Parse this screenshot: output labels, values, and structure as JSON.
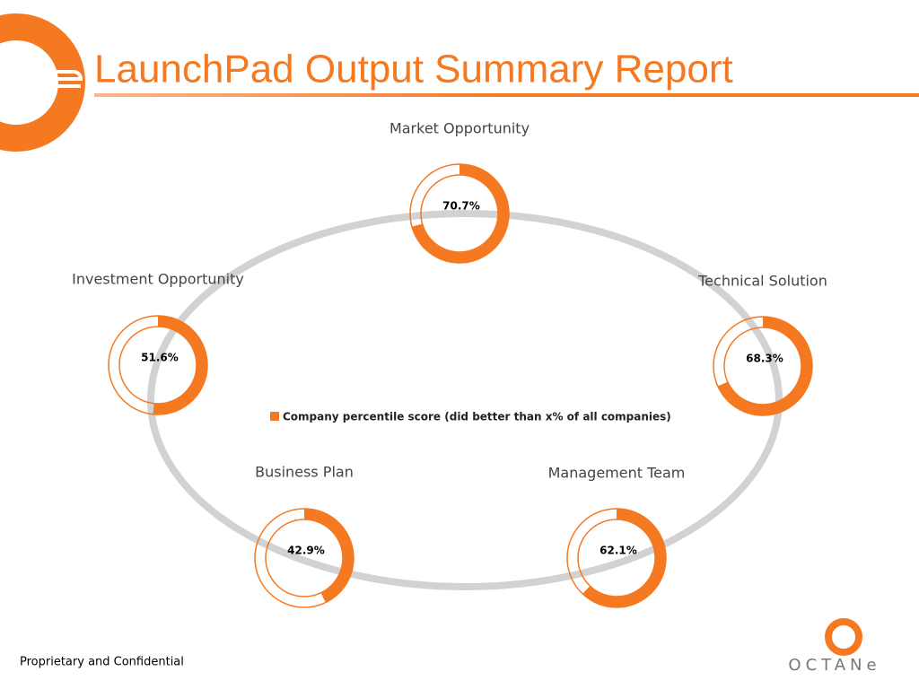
{
  "title": "LaunchPad Output Summary Report",
  "footer": "Proprietary and Confidential",
  "logo": "OCTANe",
  "legend": {
    "label": "Company percentile score (did better than x% of all companies)",
    "color": "#f47920"
  },
  "chart_data": [
    {
      "type": "donut",
      "title": "Market Opportunity",
      "values": [
        70.7
      ],
      "value_labels": [
        "70.7%"
      ],
      "color": "#f47920"
    },
    {
      "type": "donut",
      "title": "Investment Opportunity",
      "values": [
        51.6
      ],
      "value_labels": [
        "51.6%"
      ],
      "color": "#f47920"
    },
    {
      "type": "donut",
      "title": "Technical Solution",
      "values": [
        68.3
      ],
      "value_labels": [
        "68.3%"
      ],
      "color": "#f47920"
    },
    {
      "type": "donut",
      "title": "Business Plan",
      "values": [
        42.9
      ],
      "value_labels": [
        "42.9%"
      ],
      "color": "#f47920"
    },
    {
      "type": "donut",
      "title": "Management Team",
      "values": [
        62.1
      ],
      "value_labels": [
        "62.1%"
      ],
      "color": "#f47920"
    }
  ]
}
